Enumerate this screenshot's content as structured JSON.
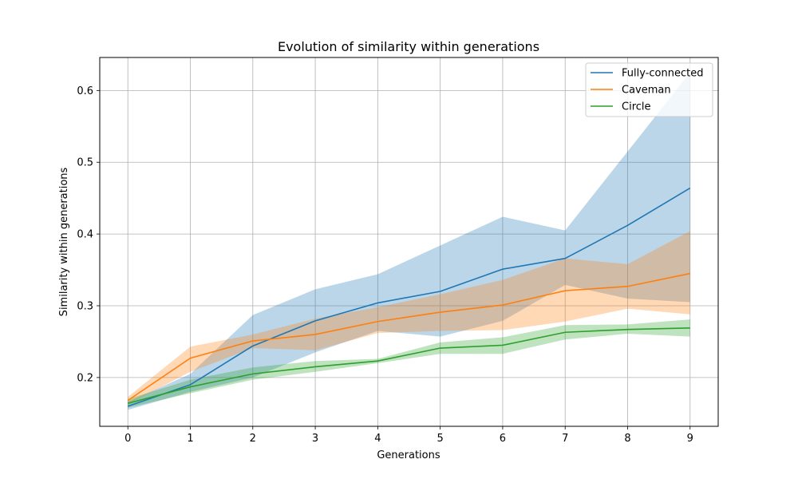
{
  "chart_data": {
    "type": "line",
    "title": "Evolution of similarity within generations",
    "xlabel": "Generations",
    "ylabel": "Similarity within generations",
    "x": [
      0,
      1,
      2,
      3,
      4,
      5,
      6,
      7,
      8,
      9
    ],
    "xticks": [
      "0",
      "1",
      "2",
      "3",
      "4",
      "5",
      "6",
      "7",
      "8",
      "9"
    ],
    "yticks": [
      "0.2",
      "0.3",
      "0.4",
      "0.5",
      "0.6"
    ],
    "ytick_values": [
      0.2,
      0.3,
      0.4,
      0.5,
      0.6
    ],
    "xlim": [
      -0.45,
      9.45
    ],
    "ylim": [
      0.132,
      0.646
    ],
    "grid": true,
    "legend_position": "top-right",
    "series": [
      {
        "name": "Fully-connected",
        "color": "#1f77b4",
        "values": [
          0.16,
          0.19,
          0.244,
          0.279,
          0.304,
          0.32,
          0.351,
          0.366,
          0.412,
          0.464
        ],
        "upper": [
          0.166,
          0.205,
          0.287,
          0.323,
          0.344,
          0.384,
          0.424,
          0.405,
          0.515,
          0.625
        ],
        "lower": [
          0.155,
          0.18,
          0.2,
          0.235,
          0.265,
          0.257,
          0.279,
          0.329,
          0.31,
          0.305
        ]
      },
      {
        "name": "Caveman",
        "color": "#ff7f0e",
        "values": [
          0.168,
          0.227,
          0.251,
          0.26,
          0.278,
          0.291,
          0.301,
          0.321,
          0.327,
          0.345
        ],
        "upper": [
          0.173,
          0.243,
          0.26,
          0.282,
          0.298,
          0.316,
          0.336,
          0.366,
          0.358,
          0.404
        ],
        "lower": [
          0.163,
          0.208,
          0.241,
          0.238,
          0.262,
          0.265,
          0.266,
          0.278,
          0.296,
          0.288
        ]
      },
      {
        "name": "Circle",
        "color": "#2ca02c",
        "values": [
          0.164,
          0.187,
          0.205,
          0.215,
          0.223,
          0.241,
          0.245,
          0.263,
          0.267,
          0.269
        ],
        "upper": [
          0.17,
          0.197,
          0.214,
          0.223,
          0.226,
          0.249,
          0.256,
          0.273,
          0.274,
          0.281
        ],
        "lower": [
          0.158,
          0.178,
          0.197,
          0.208,
          0.22,
          0.233,
          0.233,
          0.253,
          0.261,
          0.257
        ]
      }
    ]
  }
}
